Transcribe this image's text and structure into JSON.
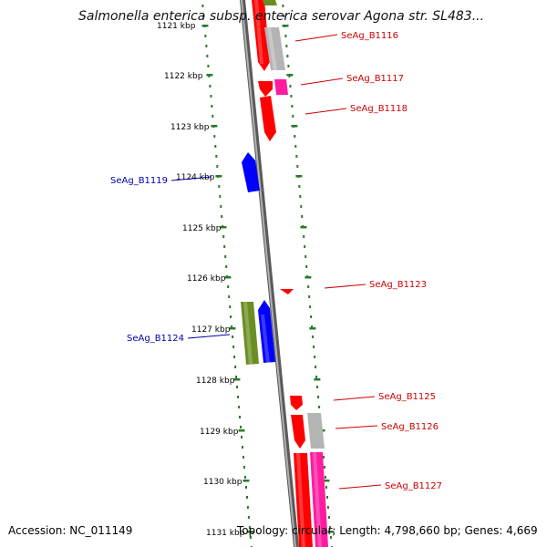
{
  "title": "Salmonella enterica subsp. enterica serovar Agona str. SL483...",
  "footer": {
    "accession": "Accession: NC_011149",
    "topology": "Topology: circular; Length: 4,798,660 bp; Genes: 4,669"
  },
  "colors": {
    "forward_label": "#cc0000",
    "reverse_label": "#0000aa",
    "tick": "#2a7a2a",
    "backbone": "#808080",
    "red": "#ff0000",
    "gray": "#b4b4b4",
    "magenta": "#ff1ca0",
    "olive": "#6b8e23",
    "blue": "#0000ff"
  },
  "ticks": [
    {
      "label": "1121 kbp"
    },
    {
      "label": "1122 kbp"
    },
    {
      "label": "1123 kbp"
    },
    {
      "label": "1124 kbp"
    },
    {
      "label": "1125 kbp"
    },
    {
      "label": "1126 kbp"
    },
    {
      "label": "1127 kbp"
    },
    {
      "label": "1128 kbp"
    },
    {
      "label": "1129 kbp"
    },
    {
      "label": "1130 kbp"
    },
    {
      "label": "1131 kbp"
    }
  ],
  "gene_labels": [
    {
      "text": "SeAg_B1116",
      "strand": "forward"
    },
    {
      "text": "SeAg_B1117",
      "strand": "forward"
    },
    {
      "text": "SeAg_B1118",
      "strand": "forward"
    },
    {
      "text": "SeAg_B1119",
      "strand": "reverse"
    },
    {
      "text": "SeAg_B1123",
      "strand": "forward"
    },
    {
      "text": "SeAg_B1124",
      "strand": "reverse"
    },
    {
      "text": "SeAg_B1125",
      "strand": "forward"
    },
    {
      "text": "SeAg_B1126",
      "strand": "forward"
    },
    {
      "text": "SeAg_B1127",
      "strand": "forward"
    }
  ]
}
